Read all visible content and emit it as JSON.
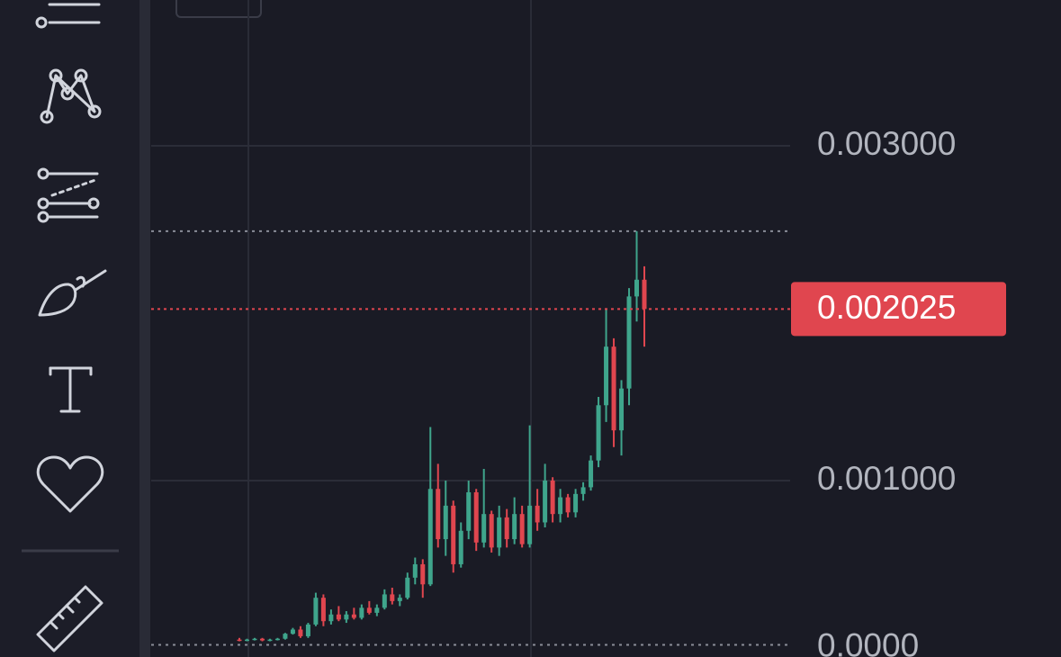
{
  "chart_data": {
    "type": "candlestick",
    "ylim": [
      -5.4e-05,
      0.003871
    ],
    "yticks": [
      {
        "value": 0.003,
        "label": "0.003000"
      },
      {
        "value": 0.001,
        "label": "0.001000"
      },
      {
        "value": 0,
        "label": "0.0000"
      }
    ],
    "grid": true,
    "up_color": "#3fa58c",
    "down_color": "#e0464f",
    "price_label": {
      "value": 0.002025,
      "label": "0.002025"
    },
    "open": [
      5e-05,
      4.5e-05,
      5e-05,
      5.5e-05,
      4.5e-05,
      5e-05,
      5.5e-05,
      8.5e-05,
      0.00011,
      7e-05,
      0.00014,
      0.0003,
      0.00016,
      0.0002,
      0.00017,
      0.0002,
      0.00018,
      0.00024,
      0.00021,
      0.00024,
      0.00032,
      0.00028,
      0.0003,
      0.00042,
      0.0005,
      0.00038,
      0.00095,
      0.00065,
      0.00085,
      0.0005,
      0.0007,
      0.00093,
      0.00063,
      0.0008,
      0.0006,
      0.00078,
      0.00065,
      0.0008,
      0.00062,
      0.00085,
      0.00075,
      0.001,
      0.0008,
      0.0009,
      0.00081,
      0.00092,
      0.00096,
      0.00112,
      0.00145,
      0.0018,
      0.0013,
      0.00155,
      0.0021,
      0.0022
    ],
    "high": [
      6e-05,
      5.5e-05,
      6e-05,
      6e-05,
      5.5e-05,
      6e-05,
      9e-05,
      0.00012,
      0.00013,
      0.00015,
      0.00033,
      0.00032,
      0.00023,
      0.00025,
      0.00022,
      0.00024,
      0.00026,
      0.00028,
      0.00026,
      0.00035,
      0.00036,
      0.00032,
      0.00045,
      0.00054,
      0.00053,
      0.00132,
      0.0011,
      0.001,
      0.00088,
      0.00075,
      0.001,
      0.00095,
      0.00107,
      0.00082,
      0.00085,
      0.00083,
      0.0009,
      0.00085,
      0.00133,
      0.00095,
      0.0011,
      0.00102,
      0.00095,
      0.00092,
      0.00095,
      0.00099,
      0.00115,
      0.0015,
      0.00203,
      0.00185,
      0.0016,
      0.00215,
      0.00249,
      0.00228
    ],
    "low": [
      4e-05,
      4e-05,
      4.5e-05,
      4e-05,
      4e-05,
      4.5e-05,
      5e-05,
      8e-05,
      6e-05,
      6e-05,
      0.00013,
      0.00013,
      0.00014,
      0.00016,
      0.00015,
      0.00017,
      0.00017,
      0.0002,
      0.00019,
      0.00023,
      0.00026,
      0.00025,
      0.00029,
      0.00038,
      0.0003,
      0.00037,
      0.0006,
      0.00055,
      0.00045,
      0.00048,
      0.00065,
      0.00058,
      0.0006,
      0.00057,
      0.00055,
      0.0006,
      0.00062,
      0.0006,
      0.0006,
      0.0007,
      0.00072,
      0.00075,
      0.00075,
      0.00078,
      0.00078,
      0.00088,
      0.00094,
      0.00108,
      0.00135,
      0.0012,
      0.00115,
      0.00145,
      0.00195,
      0.0018
    ],
    "close": [
      4.5e-05,
      5e-05,
      5.5e-05,
      4.5e-05,
      5e-05,
      5.5e-05,
      8.5e-05,
      0.00011,
      7e-05,
      0.00014,
      0.0003,
      0.00016,
      0.0002,
      0.00017,
      0.0002,
      0.00018,
      0.00024,
      0.00021,
      0.00024,
      0.00032,
      0.00028,
      0.0003,
      0.00042,
      0.0005,
      0.00038,
      0.00095,
      0.00065,
      0.00085,
      0.0005,
      0.0007,
      0.00093,
      0.00063,
      0.0008,
      0.0006,
      0.00078,
      0.00065,
      0.0008,
      0.00062,
      0.00085,
      0.00075,
      0.001,
      0.0008,
      0.0009,
      0.00081,
      0.00092,
      0.00096,
      0.00112,
      0.00145,
      0.0018,
      0.0013,
      0.00155,
      0.0021,
      0.0022,
      0.002025
    ]
  }
}
